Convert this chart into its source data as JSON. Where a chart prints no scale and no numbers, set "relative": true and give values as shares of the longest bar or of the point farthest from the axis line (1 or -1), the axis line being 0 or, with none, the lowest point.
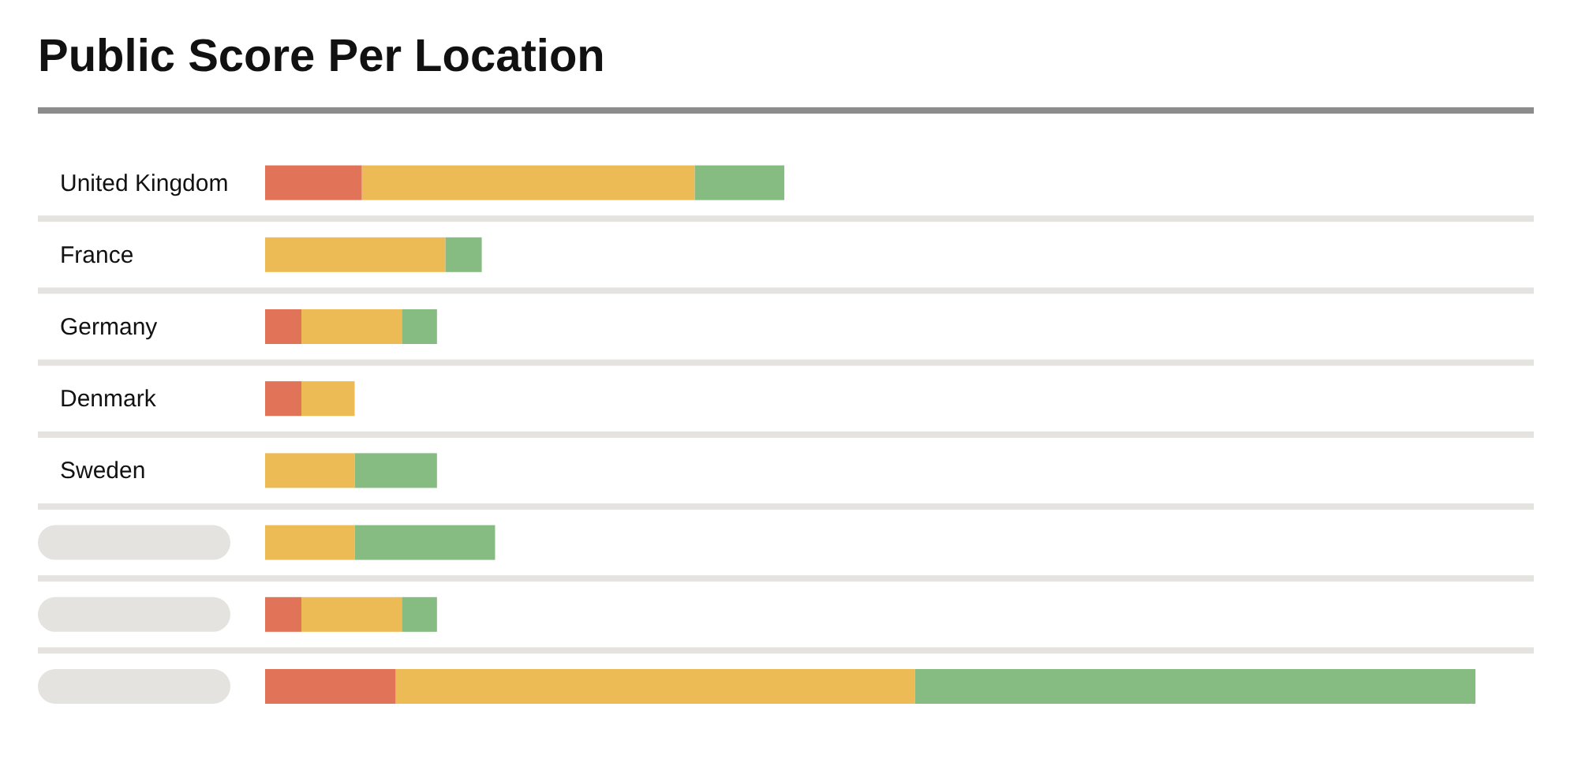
{
  "chart_data": {
    "type": "bar",
    "title": "Public Score Per Location",
    "orientation": "horizontal",
    "stacked": true,
    "relative": true,
    "categories": [
      "United Kingdom",
      "France",
      "Germany",
      "Denmark",
      "Sweden",
      null,
      null,
      null
    ],
    "series": [
      {
        "color": "#e07358",
        "values": [
          0.08,
          0,
          0.03,
          0.03,
          0,
          0,
          0.03,
          0.108
        ]
      },
      {
        "color": "#edbb55",
        "values": [
          0.275,
          0.149,
          0.083,
          0.044,
          0.074,
          0.074,
          0.083,
          0.429
        ]
      },
      {
        "color": "#86bc81",
        "values": [
          0.074,
          0.03,
          0.029,
          0,
          0.068,
          0.116,
          0.029,
          0.463
        ]
      }
    ]
  }
}
